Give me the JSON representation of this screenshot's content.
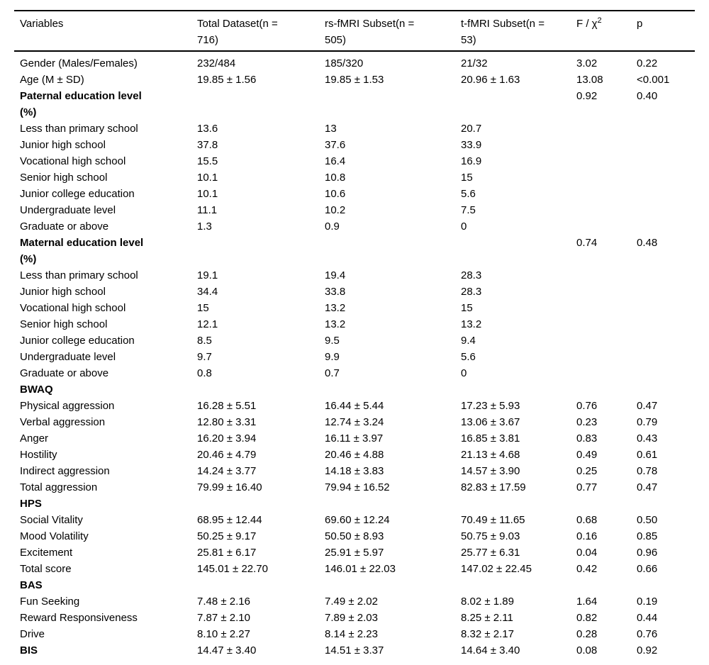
{
  "table": {
    "columns": [
      {
        "label": "Variables"
      },
      {
        "label": "Total Dataset(n =",
        "label2": "716)"
      },
      {
        "label": "rs-fMRI Subset(n =",
        "label2": "505)"
      },
      {
        "label": "t-fMRI Subset(n =",
        "label2": "53)"
      },
      {
        "label": "F / χ",
        "sup": "2"
      },
      {
        "label": "p"
      }
    ],
    "rows": [
      {
        "label": "Gender (Males/Females)",
        "bold": false,
        "indent": false,
        "c2": "232/484",
        "c3": "185/320",
        "c4": "21/32",
        "c5": "3.02",
        "c6": "0.22"
      },
      {
        "label": "Age (M ± SD)",
        "bold": false,
        "indent": false,
        "c2": "19.85 ± 1.56",
        "c3": "19.85 ± 1.53",
        "c4": "20.96 ± 1.63",
        "c5": "13.08",
        "c6": "<0.001"
      },
      {
        "label": "Paternal education level",
        "label2": "(%)",
        "bold": true,
        "indent": false,
        "c2": "",
        "c3": "",
        "c4": "",
        "c5": "0.92",
        "c6": "0.40"
      },
      {
        "label": "Less than primary school",
        "bold": false,
        "indent": true,
        "c2": "13.6",
        "c3": "13",
        "c4": "20.7",
        "c5": "",
        "c6": ""
      },
      {
        "label": "Junior high school",
        "bold": false,
        "indent": true,
        "c2": "37.8",
        "c3": "37.6",
        "c4": "33.9",
        "c5": "",
        "c6": ""
      },
      {
        "label": "Vocational high school",
        "bold": false,
        "indent": true,
        "c2": "15.5",
        "c3": "16.4",
        "c4": "16.9",
        "c5": "",
        "c6": ""
      },
      {
        "label": "Senior high school",
        "bold": false,
        "indent": true,
        "c2": "10.1",
        "c3": "10.8",
        "c4": "15",
        "c5": "",
        "c6": ""
      },
      {
        "label": "Junior college education",
        "bold": false,
        "indent": true,
        "c2": "10.1",
        "c3": "10.6",
        "c4": "5.6",
        "c5": "",
        "c6": ""
      },
      {
        "label": "Undergraduate level",
        "bold": false,
        "indent": true,
        "c2": "11.1",
        "c3": "10.2",
        "c4": "7.5",
        "c5": "",
        "c6": ""
      },
      {
        "label": "Graduate or above",
        "bold": false,
        "indent": true,
        "c2": "1.3",
        "c3": "0.9",
        "c4": "0",
        "c5": "",
        "c6": ""
      },
      {
        "label": "Maternal education level",
        "label2": "(%)",
        "bold": true,
        "indent": false,
        "c2": "",
        "c3": "",
        "c4": "",
        "c5": "0.74",
        "c6": "0.48"
      },
      {
        "label": "Less than primary school",
        "bold": false,
        "indent": true,
        "c2": "19.1",
        "c3": "19.4",
        "c4": "28.3",
        "c5": "",
        "c6": ""
      },
      {
        "label": "Junior high school",
        "bold": false,
        "indent": true,
        "c2": "34.4",
        "c3": "33.8",
        "c4": "28.3",
        "c5": "",
        "c6": ""
      },
      {
        "label": "Vocational high school",
        "bold": false,
        "indent": true,
        "c2": "15",
        "c3": "13.2",
        "c4": "15",
        "c5": "",
        "c6": ""
      },
      {
        "label": "Senior high school",
        "bold": false,
        "indent": true,
        "c2": "12.1",
        "c3": "13.2",
        "c4": "13.2",
        "c5": "",
        "c6": ""
      },
      {
        "label": "Junior college education",
        "bold": false,
        "indent": true,
        "c2": "8.5",
        "c3": "9.5",
        "c4": "9.4",
        "c5": "",
        "c6": ""
      },
      {
        "label": "Undergraduate level",
        "bold": false,
        "indent": true,
        "c2": "9.7",
        "c3": "9.9",
        "c4": "5.6",
        "c5": "",
        "c6": ""
      },
      {
        "label": "Graduate or above",
        "bold": false,
        "indent": true,
        "c2": "0.8",
        "c3": "0.7",
        "c4": "0",
        "c5": "",
        "c6": ""
      },
      {
        "label": "BWAQ",
        "bold": true,
        "indent": false,
        "c2": "",
        "c3": "",
        "c4": "",
        "c5": "",
        "c6": ""
      },
      {
        "label": "Physical aggression",
        "bold": false,
        "indent": true,
        "c2": "16.28 ± 5.51",
        "c3": "16.44 ± 5.44",
        "c4": "17.23 ± 5.93",
        "c5": "0.76",
        "c6": "0.47"
      },
      {
        "label": "Verbal aggression",
        "bold": false,
        "indent": true,
        "c2": "12.80 ± 3.31",
        "c3": "12.74 ± 3.24",
        "c4": "13.06 ± 3.67",
        "c5": "0.23",
        "c6": "0.79"
      },
      {
        "label": "Anger",
        "bold": false,
        "indent": true,
        "c2": "16.20 ± 3.94",
        "c3": "16.11 ± 3.97",
        "c4": "16.85 ± 3.81",
        "c5": "0.83",
        "c6": "0.43"
      },
      {
        "label": "Hostility",
        "bold": false,
        "indent": true,
        "c2": "20.46 ± 4.79",
        "c3": "20.46 ± 4.88",
        "c4": "21.13 ± 4.68",
        "c5": "0.49",
        "c6": "0.61"
      },
      {
        "label": "Indirect aggression",
        "bold": false,
        "indent": true,
        "c2": "14.24 ± 3.77",
        "c3": "14.18 ± 3.83",
        "c4": "14.57 ± 3.90",
        "c5": "0.25",
        "c6": "0.78"
      },
      {
        "label": "Total aggression",
        "bold": false,
        "indent": true,
        "c2": "79.99 ± 16.40",
        "c3": "79.94 ± 16.52",
        "c4": "82.83 ± 17.59",
        "c5": "0.77",
        "c6": "0.47"
      },
      {
        "label": "HPS",
        "bold": true,
        "indent": false,
        "c2": "",
        "c3": "",
        "c4": "",
        "c5": "",
        "c6": ""
      },
      {
        "label": "Social Vitality",
        "bold": false,
        "indent": true,
        "c2": "68.95 ± 12.44",
        "c3": "69.60 ± 12.24",
        "c4": "70.49 ± 11.65",
        "c5": "0.68",
        "c6": "0.50"
      },
      {
        "label": "Mood Volatility",
        "bold": false,
        "indent": true,
        "c2": "50.25 ± 9.17",
        "c3": "50.50 ± 8.93",
        "c4": "50.75 ± 9.03",
        "c5": "0.16",
        "c6": "0.85"
      },
      {
        "label": "Excitement",
        "bold": false,
        "indent": true,
        "c2": "25.81 ± 6.17",
        "c3": "25.91 ± 5.97",
        "c4": "25.77 ± 6.31",
        "c5": "0.04",
        "c6": "0.96"
      },
      {
        "label": "Total score",
        "bold": false,
        "indent": true,
        "c2": "145.01 ± 22.70",
        "c3": "146.01 ± 22.03",
        "c4": "147.02 ± 22.45",
        "c5": "0.42",
        "c6": "0.66"
      },
      {
        "label": "BAS",
        "bold": true,
        "indent": false,
        "c2": "",
        "c3": "",
        "c4": "",
        "c5": "",
        "c6": ""
      },
      {
        "label": "Fun Seeking",
        "bold": false,
        "indent": true,
        "c2": "7.48 ± 2.16",
        "c3": "7.49 ± 2.02",
        "c4": "8.02 ± 1.89",
        "c5": "1.64",
        "c6": "0.19"
      },
      {
        "label": "Reward Responsiveness",
        "bold": false,
        "indent": true,
        "c2": "7.87 ± 2.10",
        "c3": "7.89 ± 2.03",
        "c4": "8.25 ± 2.11",
        "c5": "0.82",
        "c6": "0.44"
      },
      {
        "label": "Drive",
        "bold": false,
        "indent": true,
        "c2": "8.10 ± 2.27",
        "c3": "8.14 ± 2.23",
        "c4": "8.32 ± 2.17",
        "c5": "0.28",
        "c6": "0.76"
      },
      {
        "label": "BIS",
        "bold": true,
        "indent": false,
        "c2": "14.47 ± 3.40",
        "c3": "14.51 ± 3.37",
        "c4": "14.64 ± 3.40",
        "c5": "0.08",
        "c6": "0.92"
      }
    ]
  }
}
